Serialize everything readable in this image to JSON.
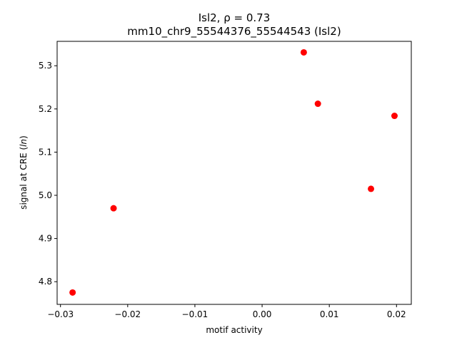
{
  "chart_data": {
    "type": "scatter",
    "title_line1": "Isl2, ρ = 0.73",
    "title_line2": "mm10_chr9_55544376_55544543 (Isl2)",
    "xlabel": "motif activity",
    "ylabel_prefix": "signal at CRE (",
    "ylabel_italic": "ln",
    "ylabel_suffix": ")",
    "xlim": [
      -0.0305,
      0.0222
    ],
    "ylim": [
      4.7475,
      5.3565
    ],
    "x_ticks": [
      -0.03,
      -0.02,
      -0.01,
      0.0,
      0.01,
      0.02
    ],
    "x_tick_labels": [
      "−0.03",
      "−0.02",
      "−0.01",
      "0.00",
      "0.01",
      "0.02"
    ],
    "y_ticks": [
      4.8,
      4.9,
      5.0,
      5.1,
      5.2,
      5.3
    ],
    "y_tick_labels": [
      "4.8",
      "4.9",
      "5.0",
      "5.1",
      "5.2",
      "5.3"
    ],
    "grid": false,
    "marker_color": "#ff0000",
    "points": [
      {
        "x": -0.0282,
        "y": 4.775
      },
      {
        "x": -0.0221,
        "y": 4.97
      },
      {
        "x": 0.0062,
        "y": 5.331
      },
      {
        "x": 0.0083,
        "y": 5.212
      },
      {
        "x": 0.0162,
        "y": 5.015
      },
      {
        "x": 0.0197,
        "y": 5.184
      }
    ]
  }
}
